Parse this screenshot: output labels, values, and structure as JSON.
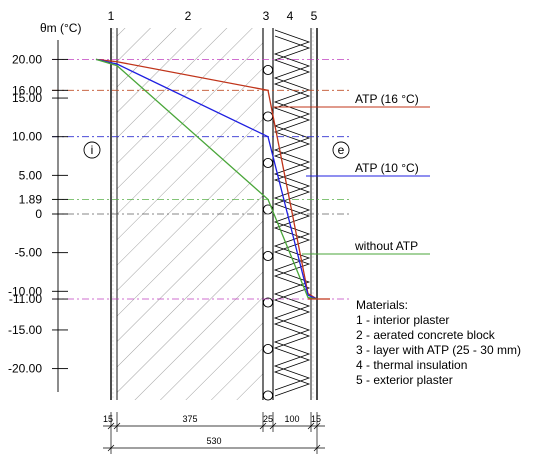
{
  "axis": {
    "title": "θm (°C)",
    "ticks": [
      {
        "text": "20.00",
        "value": 20,
        "color": "#c0309c",
        "guide": true,
        "guide_color": "#c040c0"
      },
      {
        "text": "16.00",
        "value": 16,
        "color": "#b03010",
        "guide": true,
        "guide_color": "#c0502a"
      },
      {
        "text": "15.00",
        "value": 15,
        "color": "#000000",
        "guide": false
      },
      {
        "text": "10.00",
        "value": 10,
        "color": "#2020d0",
        "guide": true,
        "guide_color": "#3030d0"
      },
      {
        "text": "5.00",
        "value": 5,
        "color": "#000000",
        "guide": false
      },
      {
        "text": "1.89",
        "value": 1.89,
        "color": "#3a9a2a",
        "guide": true,
        "guide_color": "#5ab04a"
      },
      {
        "text": "0",
        "value": 0,
        "color": "#000000",
        "guide": true,
        "guide_color": "#606060"
      },
      {
        "text": "-5.00",
        "value": -5,
        "color": "#000000",
        "guide": false
      },
      {
        "text": "-10.00",
        "value": -10,
        "color": "#000000",
        "guide": false
      },
      {
        "text": "-11.00",
        "value": -11,
        "color": "#c0309c",
        "guide": true,
        "guide_color": "#c040c0"
      },
      {
        "text": "-15.00",
        "value": -15,
        "color": "#000000",
        "guide": false
      },
      {
        "text": "-20.00",
        "value": -20,
        "color": "#000000",
        "guide": false
      }
    ]
  },
  "layers": [
    {
      "number": "1",
      "thickness": "15"
    },
    {
      "number": "2",
      "thickness": "375"
    },
    {
      "number": "3",
      "thickness": "25"
    },
    {
      "number": "4",
      "thickness": "100"
    },
    {
      "number": "5",
      "thickness": "15"
    }
  ],
  "total_thickness": "530",
  "side_labels": {
    "interior": "i",
    "exterior": "e"
  },
  "profiles": [
    {
      "label": "ATP (16 °C)",
      "color": "#c0341a",
      "temps": [
        20,
        19.7,
        16,
        -10.3,
        -11
      ]
    },
    {
      "label": "ATP (10 °C)",
      "color": "#1f1fe0",
      "temps": [
        20,
        19.4,
        10,
        -10.5,
        -11
      ]
    },
    {
      "label": "without ATP",
      "color": "#4aa63a",
      "temps": [
        20,
        19.2,
        1.89,
        -10.8,
        -11
      ]
    }
  ],
  "materials": {
    "title": "Materials:",
    "items": [
      "1 - interior plaster",
      "2 - aerated concrete block",
      "3 - layer with ATP (25 - 30 mm)",
      "4 - thermal insulation",
      "5 - exterior plaster"
    ]
  },
  "colors": {
    "wall": "#000000",
    "hatch": "#8a8a8a",
    "accent_magenta": "#c040c0"
  }
}
